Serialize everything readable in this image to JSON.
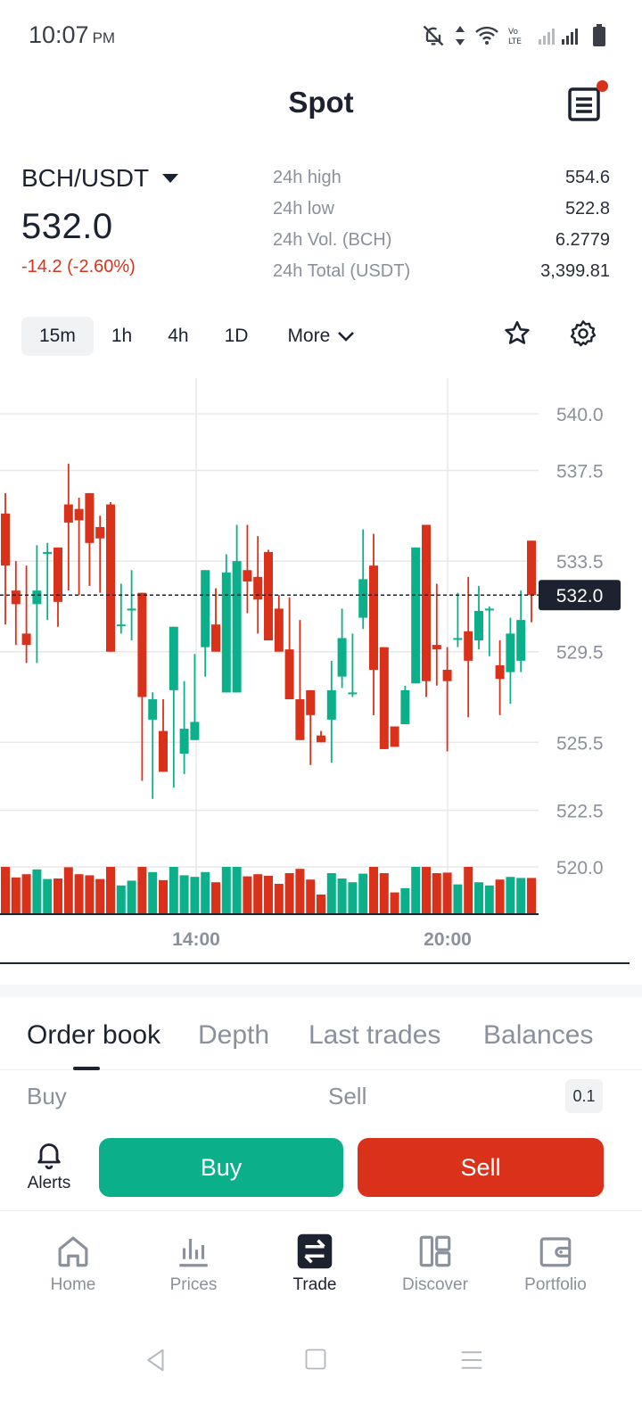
{
  "status_bar": {
    "time": "10:07",
    "ampm": "PM"
  },
  "header": {
    "title": "Spot"
  },
  "market": {
    "pair": "BCH/USDT",
    "last_price": "532.0",
    "change": "-14.2 (-2.60%)",
    "stats": [
      {
        "label": "24h high",
        "value": "554.6"
      },
      {
        "label": "24h low",
        "value": "522.8"
      },
      {
        "label": "24h Vol. (BCH)",
        "value": "6.2779"
      },
      {
        "label": "24h Total (USDT)",
        "value": "3,399.81"
      }
    ]
  },
  "intervals": {
    "items": [
      "15m",
      "1h",
      "4h",
      "1D"
    ],
    "active": "15m",
    "more_label": "More"
  },
  "colors": {
    "up": "#0bb08b",
    "down": "#d9311a",
    "text": "#1c2230",
    "muted": "#8a909c"
  },
  "chart_data": {
    "type": "candlestick",
    "y_axis_labels": [
      "540.0",
      "537.5",
      "533.5",
      "529.5",
      "525.5",
      "522.5",
      "520.0"
    ],
    "x_axis_labels": [
      "14:00",
      "20:00"
    ],
    "current_price_label": "532.0",
    "candles": [
      {
        "o": 535.6,
        "h": 536.5,
        "l": 530.7,
        "c": 533.3
      },
      {
        "o": 532.2,
        "h": 533.5,
        "l": 529.8,
        "c": 531.6
      },
      {
        "o": 530.3,
        "h": 533.3,
        "l": 529.0,
        "c": 529.8
      },
      {
        "o": 531.6,
        "h": 534.2,
        "l": 529.0,
        "c": 532.2
      },
      {
        "o": 533.9,
        "h": 534.3,
        "l": 530.9,
        "c": 533.9
      },
      {
        "o": 534.1,
        "h": 534.1,
        "l": 530.6,
        "c": 531.7
      },
      {
        "o": 536.0,
        "h": 537.8,
        "l": 532.2,
        "c": 535.2
      },
      {
        "o": 535.8,
        "h": 536.3,
        "l": 532.0,
        "c": 535.3
      },
      {
        "o": 536.5,
        "h": 536.5,
        "l": 532.4,
        "c": 534.3
      },
      {
        "o": 535.0,
        "h": 535.5,
        "l": 532.1,
        "c": 534.5
      },
      {
        "o": 536.0,
        "h": 536.1,
        "l": 529.5,
        "c": 529.5
      },
      {
        "o": 530.7,
        "h": 532.5,
        "l": 530.3,
        "c": 530.7
      },
      {
        "o": 531.4,
        "h": 533.1,
        "l": 530.0,
        "c": 531.4
      },
      {
        "o": 532.1,
        "h": 532.1,
        "l": 523.8,
        "c": 527.5
      },
      {
        "o": 526.5,
        "h": 527.7,
        "l": 523.0,
        "c": 527.4
      },
      {
        "o": 526.0,
        "h": 527.4,
        "l": 524.2,
        "c": 524.2
      },
      {
        "o": 527.8,
        "h": 530.6,
        "l": 523.5,
        "c": 530.6
      },
      {
        "o": 525.0,
        "h": 528.2,
        "l": 524.1,
        "c": 526.1
      },
      {
        "o": 525.6,
        "h": 529.4,
        "l": 525.6,
        "c": 526.4
      },
      {
        "o": 529.7,
        "h": 533.1,
        "l": 528.4,
        "c": 533.1
      },
      {
        "o": 530.7,
        "h": 532.3,
        "l": 529.5,
        "c": 529.5
      },
      {
        "o": 527.7,
        "h": 533.8,
        "l": 527.7,
        "c": 533.0
      },
      {
        "o": 527.7,
        "h": 535.1,
        "l": 527.7,
        "c": 533.5
      },
      {
        "o": 533.1,
        "h": 535.1,
        "l": 531.2,
        "c": 532.6
      },
      {
        "o": 532.8,
        "h": 534.6,
        "l": 530.3,
        "c": 531.8
      },
      {
        "o": 533.9,
        "h": 534.0,
        "l": 530.0,
        "c": 530.0
      },
      {
        "o": 531.4,
        "h": 532.0,
        "l": 529.5,
        "c": 529.5
      },
      {
        "o": 529.6,
        "h": 531.9,
        "l": 527.4,
        "c": 527.4
      },
      {
        "o": 527.4,
        "h": 530.9,
        "l": 525.6,
        "c": 525.6
      },
      {
        "o": 527.8,
        "h": 527.8,
        "l": 524.5,
        "c": 526.7
      },
      {
        "o": 525.8,
        "h": 526.0,
        "l": 525.5,
        "c": 525.5
      },
      {
        "o": 526.5,
        "h": 529.1,
        "l": 524.6,
        "c": 527.8
      },
      {
        "o": 528.4,
        "h": 531.4,
        "l": 527.9,
        "c": 530.1
      },
      {
        "o": 527.7,
        "h": 530.3,
        "l": 527.5,
        "c": 527.7
      },
      {
        "o": 531.0,
        "h": 534.9,
        "l": 530.5,
        "c": 532.7
      },
      {
        "o": 533.3,
        "h": 534.7,
        "l": 526.7,
        "c": 528.7
      },
      {
        "o": 529.7,
        "h": 529.7,
        "l": 525.2,
        "c": 525.2
      },
      {
        "o": 526.2,
        "h": 526.2,
        "l": 525.3,
        "c": 525.3
      },
      {
        "o": 526.3,
        "h": 528.0,
        "l": 526.3,
        "c": 527.8
      },
      {
        "o": 528.1,
        "h": 534.1,
        "l": 528.1,
        "c": 534.1
      },
      {
        "o": 535.1,
        "h": 535.1,
        "l": 527.5,
        "c": 528.2
      },
      {
        "o": 529.8,
        "h": 532.5,
        "l": 528.0,
        "c": 529.6
      },
      {
        "o": 528.7,
        "h": 529.7,
        "l": 525.1,
        "c": 528.2
      },
      {
        "o": 530.1,
        "h": 532.1,
        "l": 529.7,
        "c": 530.1
      },
      {
        "o": 530.4,
        "h": 532.8,
        "l": 526.6,
        "c": 529.1
      },
      {
        "o": 530.0,
        "h": 532.4,
        "l": 529.6,
        "c": 531.3
      },
      {
        "o": 531.4,
        "h": 531.5,
        "l": 529.3,
        "c": 531.4
      },
      {
        "o": 528.9,
        "h": 530.0,
        "l": 526.7,
        "c": 528.3
      },
      {
        "o": 528.6,
        "h": 531.0,
        "l": 527.2,
        "c": 530.3
      },
      {
        "o": 529.1,
        "h": 532.2,
        "l": 528.6,
        "c": 530.9
      },
      {
        "o": 534.4,
        "h": 534.4,
        "l": 530.8,
        "c": 532.0
      }
    ]
  },
  "tabs": [
    "Order book",
    "Depth",
    "Last trades",
    "Balances"
  ],
  "order_book": {
    "buy_label": "Buy",
    "sell_label": "Sell",
    "step": "0.1"
  },
  "actions": {
    "alerts_label": "Alerts",
    "buy_label": "Buy",
    "sell_label": "Sell"
  },
  "nav": [
    {
      "label": "Home",
      "icon": "home-icon"
    },
    {
      "label": "Prices",
      "icon": "bar-chart-icon"
    },
    {
      "label": "Trade",
      "icon": "swap-icon",
      "active": true
    },
    {
      "label": "Discover",
      "icon": "grid-icon"
    },
    {
      "label": "Portfolio",
      "icon": "wallet-icon"
    }
  ]
}
